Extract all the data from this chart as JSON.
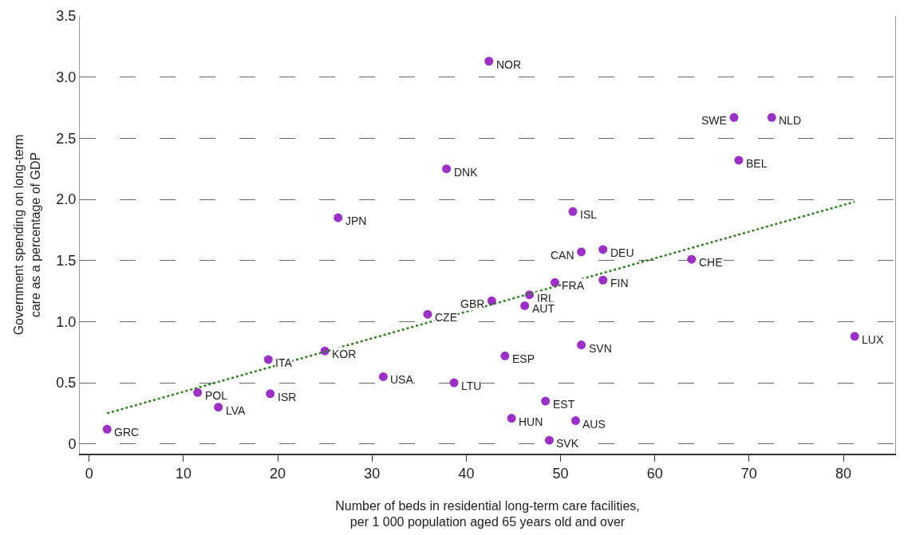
{
  "chart_data": {
    "type": "scatter",
    "xlabel": "Number of beds in residential long-term care facilities,\nper 1 000 population aged 65 years old and over",
    "ylabel": "Government spending on long-term\ncare as a percentage of GDP",
    "x": [
      42.4,
      68.4,
      72.4,
      68.9,
      37.9,
      26.4,
      51.3,
      52.2,
      54.5,
      63.9,
      49.4,
      54.5,
      42.7,
      46.7,
      46.2,
      35.9,
      25.0,
      19.0,
      52.2,
      81.2,
      44.1,
      31.2,
      38.7,
      11.5,
      19.2,
      13.7,
      1.9,
      48.4,
      44.8,
      51.6,
      48.8
    ],
    "series": [
      {
        "color": "#9b2fc8",
        "marker": "circle",
        "values": [
          3.13,
          2.67,
          2.67,
          2.32,
          2.25,
          1.85,
          1.9,
          1.57,
          1.59,
          1.51,
          1.32,
          1.34,
          1.17,
          1.22,
          1.13,
          1.06,
          0.76,
          0.69,
          0.81,
          0.88,
          0.72,
          0.55,
          0.5,
          0.42,
          0.41,
          0.3,
          0.12,
          0.35,
          0.21,
          0.19,
          0.03
        ]
      },
      {
        "type": "line",
        "color": "#2e7d1e",
        "line_style": "dotted",
        "marker": "none",
        "x": [
          1.9,
          81.2
        ],
        "values": [
          0.25,
          1.98
        ]
      }
    ],
    "annotations": [
      {
        "text": "NOR",
        "x": 42.4,
        "y": 3.13
      },
      {
        "text": "SWE",
        "x": 68.4,
        "y": 2.67
      },
      {
        "text": "NLD",
        "x": 72.4,
        "y": 2.67
      },
      {
        "text": "BEL",
        "x": 68.9,
        "y": 2.32
      },
      {
        "text": "DNK",
        "x": 37.9,
        "y": 2.25
      },
      {
        "text": "JPN",
        "x": 26.4,
        "y": 1.85
      },
      {
        "text": "ISL",
        "x": 51.3,
        "y": 1.9
      },
      {
        "text": "CAN",
        "x": 52.2,
        "y": 1.57
      },
      {
        "text": "DEU",
        "x": 54.5,
        "y": 1.59
      },
      {
        "text": "CHE",
        "x": 63.9,
        "y": 1.51
      },
      {
        "text": "FRA",
        "x": 49.4,
        "y": 1.32
      },
      {
        "text": "FIN",
        "x": 54.5,
        "y": 1.34
      },
      {
        "text": "GBR",
        "x": 42.7,
        "y": 1.17
      },
      {
        "text": "IRL",
        "x": 46.7,
        "y": 1.22
      },
      {
        "text": "AUT",
        "x": 46.2,
        "y": 1.13
      },
      {
        "text": "CZE",
        "x": 35.9,
        "y": 1.06
      },
      {
        "text": "KOR",
        "x": 25.0,
        "y": 0.76
      },
      {
        "text": "ITA",
        "x": 19.0,
        "y": 0.69
      },
      {
        "text": "SVN",
        "x": 52.2,
        "y": 0.81
      },
      {
        "text": "LUX",
        "x": 81.2,
        "y": 0.88
      },
      {
        "text": "ESP",
        "x": 44.1,
        "y": 0.72
      },
      {
        "text": "USA",
        "x": 31.2,
        "y": 0.55
      },
      {
        "text": "LTU",
        "x": 38.7,
        "y": 0.5
      },
      {
        "text": "POL",
        "x": 11.5,
        "y": 0.42
      },
      {
        "text": "ISR",
        "x": 19.2,
        "y": 0.41
      },
      {
        "text": "LVA",
        "x": 13.7,
        "y": 0.3
      },
      {
        "text": "GRC",
        "x": 1.9,
        "y": 0.12
      },
      {
        "text": "EST",
        "x": 48.4,
        "y": 0.35
      },
      {
        "text": "HUN",
        "x": 44.8,
        "y": 0.21
      },
      {
        "text": "AUS",
        "x": 51.6,
        "y": 0.19
      },
      {
        "text": "SVK",
        "x": 48.8,
        "y": 0.03
      }
    ],
    "xlim": [
      -1,
      85.5
    ],
    "xticks": [
      0,
      10,
      20,
      30,
      40,
      50,
      60,
      70,
      80
    ],
    "ylim": [
      -0.08,
      3.5
    ],
    "yticks": [
      0,
      0.5,
      {
        "value": 1,
        "label": "1.0"
      },
      1.5,
      {
        "value": 2,
        "label": "2.0"
      },
      2.5,
      {
        "value": 3,
        "label": "3.0"
      },
      3.5
    ],
    "grid": "y"
  }
}
